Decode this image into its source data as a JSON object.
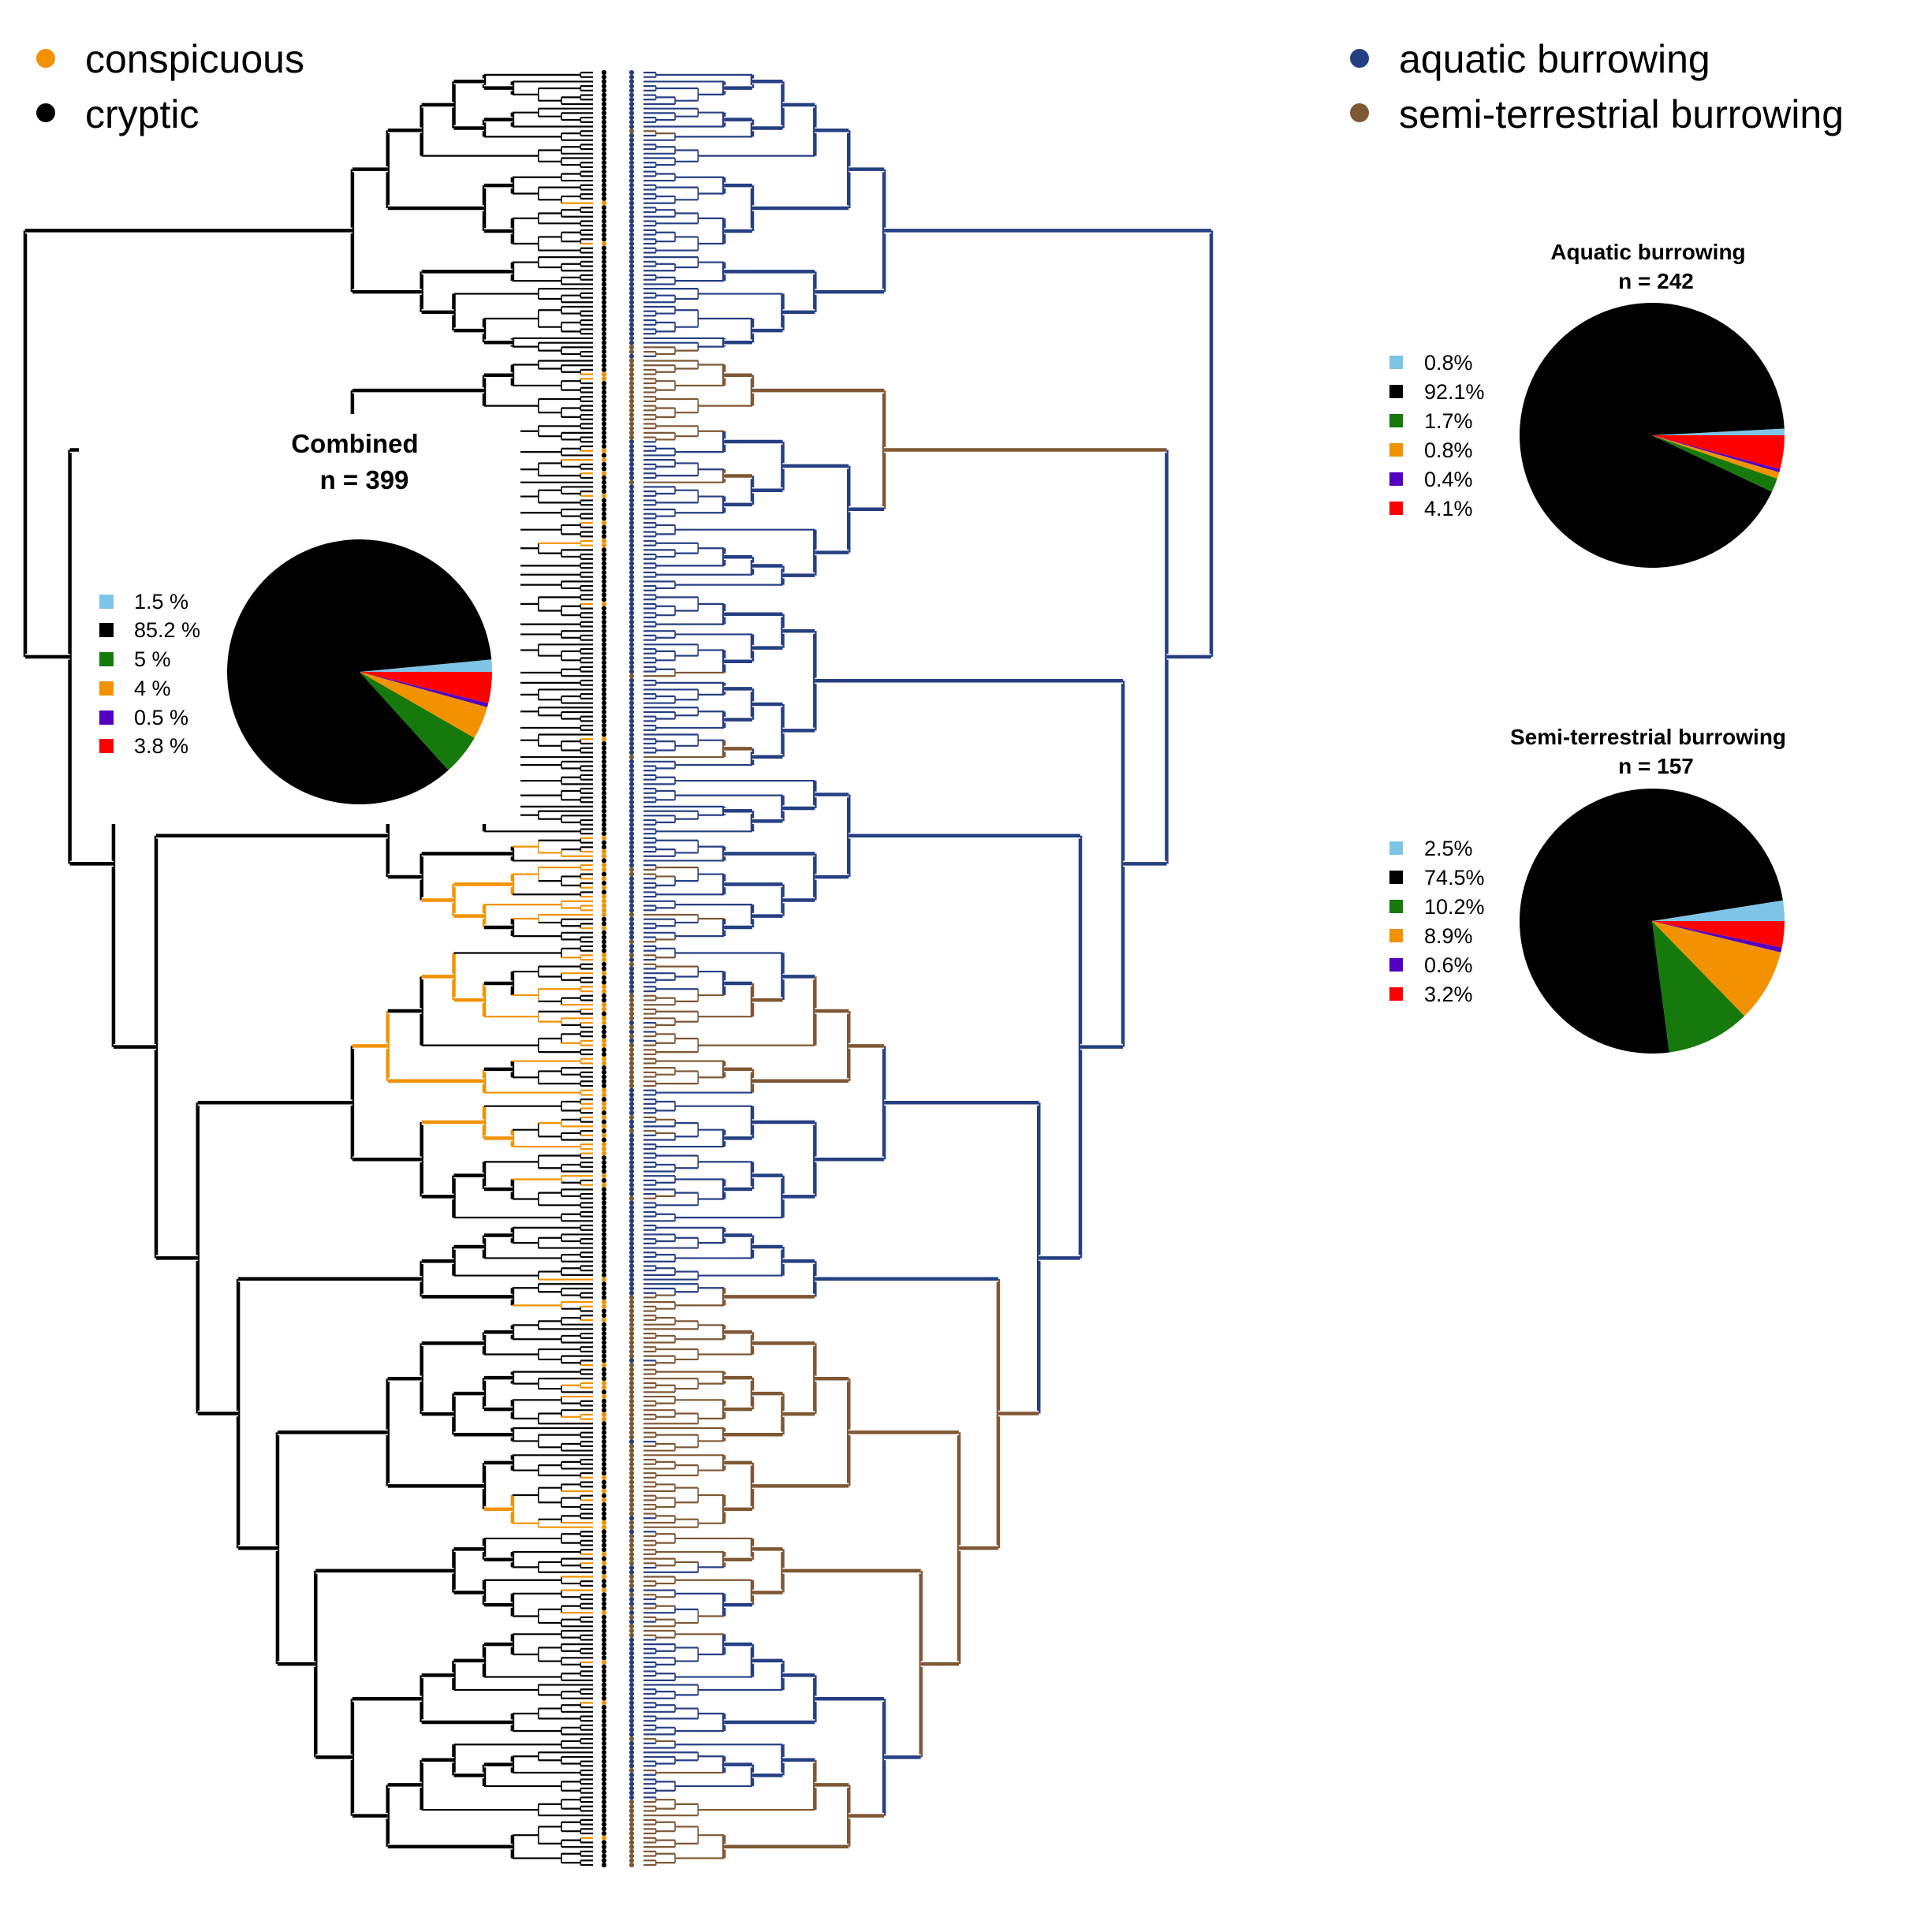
{
  "legend_left": [
    {
      "label": "conspicuous",
      "color": "#F39200"
    },
    {
      "label": "cryptic",
      "color": "#000000"
    }
  ],
  "legend_right": [
    {
      "label": "aquatic burrowing",
      "color": "#263F82"
    },
    {
      "label": "semi-terrestrial burrowing",
      "color": "#7E5734"
    }
  ],
  "colors": {
    "conspicuous": "#F39200",
    "cryptic": "#000000",
    "aquatic": "#263F82",
    "semi_terrestrial": "#7E5734",
    "light_blue": "#7EC4E6",
    "green": "#157A0B",
    "purple": "#5200C2",
    "red": "#FF0000"
  },
  "chart_data": [
    {
      "type": "pie",
      "title": "Combined",
      "subtitle": "n = 399",
      "labels": [
        "1.5 %",
        "85.2 %",
        "5 %",
        "4 %",
        "0.5 %",
        "3.8 %"
      ],
      "values": [
        1.5,
        85.2,
        5,
        4,
        0.5,
        3.8
      ],
      "colors": [
        "#7EC4E6",
        "#000000",
        "#157A0B",
        "#F39200",
        "#5200C2",
        "#FF0000"
      ]
    },
    {
      "type": "pie",
      "title": "Aquatic burrowing",
      "subtitle": "n = 242",
      "labels": [
        "0.8%",
        "92.1%",
        "1.7%",
        "0.8%",
        "0.4%",
        "4.1%"
      ],
      "values": [
        0.8,
        92.1,
        1.7,
        0.8,
        0.4,
        4.1
      ],
      "colors": [
        "#7EC4E6",
        "#000000",
        "#157A0B",
        "#F39200",
        "#5200C2",
        "#FF0000"
      ]
    },
    {
      "type": "pie",
      "title": "Semi-terrestrial burrowing",
      "subtitle": "n = 157",
      "labels": [
        "2.5%",
        "74.5%",
        "10.2%",
        "8.9%",
        "0.6%",
        "3.2%"
      ],
      "values": [
        2.5,
        74.5,
        10.2,
        8.9,
        0.6,
        3.2
      ],
      "colors": [
        "#7EC4E6",
        "#000000",
        "#157A0B",
        "#F39200",
        "#5200C2",
        "#FF0000"
      ]
    }
  ]
}
